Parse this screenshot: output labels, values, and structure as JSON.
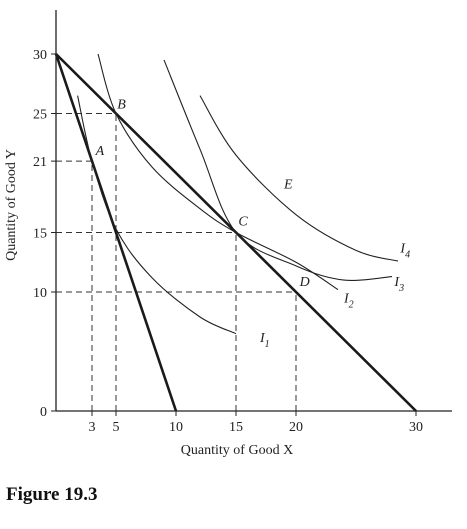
{
  "figure_label": "Figure 19.3",
  "chart_data": {
    "type": "line",
    "xlabel": "Quantity of Good X",
    "ylabel": "Quantity of Good Y",
    "xlim": [
      0,
      33
    ],
    "ylim": [
      0,
      32
    ],
    "x_ticks": [
      {
        "value": 3,
        "label": "3"
      },
      {
        "value": 5,
        "label": "5"
      },
      {
        "value": 10,
        "label": "10"
      },
      {
        "value": 15,
        "label": "15"
      },
      {
        "value": 20,
        "label": "20"
      },
      {
        "value": 30,
        "label": "30"
      }
    ],
    "y_ticks": [
      {
        "value": 0,
        "label": "0"
      },
      {
        "value": 10,
        "label": "10"
      },
      {
        "value": 15,
        "label": "15"
      },
      {
        "value": 21,
        "label": "21"
      },
      {
        "value": 25,
        "label": "25"
      },
      {
        "value": 30,
        "label": "30"
      }
    ],
    "budget_lines": [
      {
        "from": [
          0,
          30
        ],
        "to": [
          10,
          0
        ]
      },
      {
        "from": [
          0,
          30
        ],
        "to": [
          30,
          0
        ]
      }
    ],
    "indifference_curves": [
      {
        "name": "I1",
        "points": [
          [
            1.8,
            26.5
          ],
          [
            3,
            21
          ],
          [
            5,
            15.3
          ],
          [
            8,
            11.2
          ],
          [
            12,
            7.9
          ],
          [
            15,
            6.5
          ]
        ]
      },
      {
        "name": "I2",
        "points": [
          [
            3.5,
            30
          ],
          [
            5,
            25
          ],
          [
            8,
            20.5
          ],
          [
            12,
            17
          ],
          [
            15,
            15
          ],
          [
            20,
            12.5
          ],
          [
            23.5,
            10.2
          ]
        ]
      },
      {
        "name": "I3",
        "points": [
          [
            9,
            29.5
          ],
          [
            12,
            22
          ],
          [
            15,
            15
          ],
          [
            20,
            12.2
          ],
          [
            24,
            11
          ],
          [
            28,
            11.3
          ]
        ]
      },
      {
        "name": "I4",
        "points": [
          [
            12,
            26.5
          ],
          [
            15,
            21.5
          ],
          [
            20,
            16.5
          ],
          [
            25,
            13.5
          ],
          [
            28.5,
            12.6
          ]
        ]
      }
    ],
    "curve_labels": [
      {
        "text": "I",
        "sub": "1",
        "at": [
          17,
          5.8
        ]
      },
      {
        "text": "I",
        "sub": "2",
        "at": [
          24,
          9.1
        ]
      },
      {
        "text": "I",
        "sub": "3",
        "at": [
          28.2,
          10.5
        ]
      },
      {
        "text": "I",
        "sub": "4",
        "at": [
          28.7,
          13.3
        ]
      }
    ],
    "points": [
      {
        "label": "A",
        "x": 3,
        "y": 21,
        "label_at": [
          3.3,
          21.5
        ]
      },
      {
        "label": "B",
        "x": 5,
        "y": 25,
        "label_at": [
          5.1,
          25.4
        ]
      },
      {
        "label": "C",
        "x": 15,
        "y": 15,
        "label_at": [
          15.2,
          15.6
        ]
      },
      {
        "label": "D",
        "x": 20,
        "y": 10,
        "label_at": [
          20.3,
          10.5
        ]
      }
    ],
    "annotations": [
      {
        "text": "E",
        "at": [
          19,
          18.7
        ]
      }
    ],
    "reference_lines": [
      {
        "type": "v",
        "x": 3,
        "y_to": 21
      },
      {
        "type": "v",
        "x": 5,
        "y_to": 25
      },
      {
        "type": "v",
        "x": 15,
        "y_to": 15
      },
      {
        "type": "v",
        "x": 20,
        "y_to": 10
      },
      {
        "type": "h",
        "y": 25,
        "x_to": 5
      },
      {
        "type": "h",
        "y": 21,
        "x_to": 3
      },
      {
        "type": "h",
        "y": 15,
        "x_to": 15
      },
      {
        "type": "h",
        "y": 10,
        "x_to": 20
      }
    ]
  }
}
